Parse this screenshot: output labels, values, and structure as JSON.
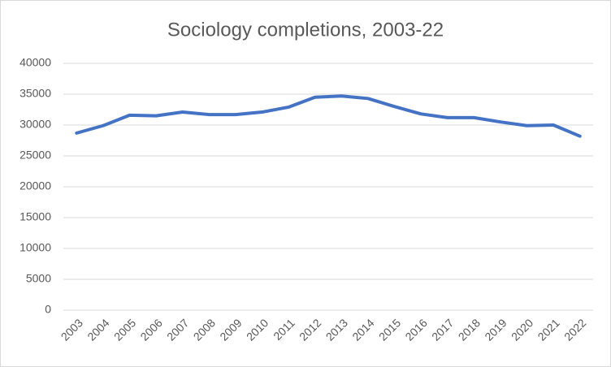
{
  "chart_data": {
    "type": "line",
    "title": "Sociology completions, 2003-22",
    "categories": [
      "2003",
      "2004",
      "2005",
      "2006",
      "2007",
      "2008",
      "2009",
      "2010",
      "2011",
      "2012",
      "2013",
      "2014",
      "2015",
      "2016",
      "2017",
      "2018",
      "2019",
      "2020",
      "2021",
      "2022"
    ],
    "series": [
      {
        "name": "Sociology completions",
        "color": "#4472c4",
        "values": [
          28700,
          29900,
          31600,
          31500,
          32100,
          31700,
          31700,
          32100,
          32900,
          34500,
          34700,
          34300,
          33000,
          31800,
          31200,
          31200,
          30500,
          29900,
          30000,
          28200
        ]
      }
    ],
    "ylim": [
      0,
      40000
    ],
    "yticks": [
      0,
      5000,
      10000,
      15000,
      20000,
      25000,
      30000,
      35000,
      40000
    ],
    "grid": true
  }
}
